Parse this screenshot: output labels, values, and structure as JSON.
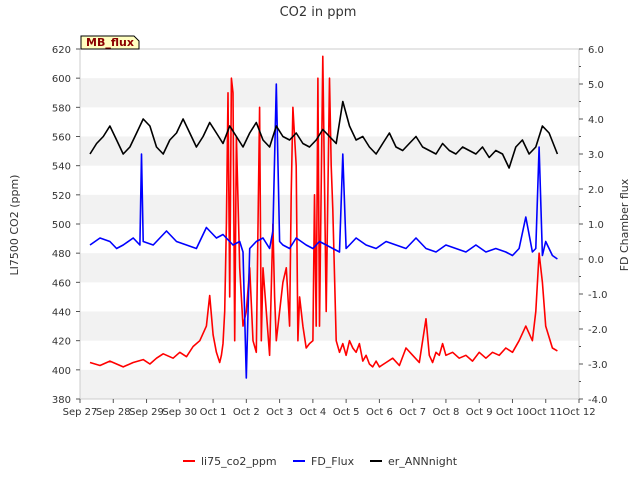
{
  "chart_data": {
    "type": "line",
    "title": "CO2 in ppm",
    "ylabel_left": "LI7500 CO2 (ppm)",
    "ylabel_right": "FD Chamber flux",
    "badge": "MB_flux",
    "ylim_left": [
      380,
      620
    ],
    "ylim_right": [
      -4.0,
      6.0
    ],
    "xlim": [
      0,
      15
    ],
    "left_ticks": [
      "380",
      "400",
      "420",
      "440",
      "460",
      "480",
      "500",
      "520",
      "540",
      "560",
      "580",
      "600",
      "620"
    ],
    "right_ticks": [
      "-4.0",
      "-3.0",
      "-2.0",
      "-1.0",
      "0.0",
      "1.0",
      "2.0",
      "3.0",
      "4.0",
      "5.0",
      "6.0"
    ],
    "x_ticks": [
      "Sep 27",
      "Sep 28",
      "Sep 29",
      "Sep 30",
      "Oct 1",
      "Oct 2",
      "Oct 3",
      "Oct 4",
      "Oct 5",
      "Oct 6",
      "Oct 7",
      "Oct 8",
      "Oct 9",
      "Oct 10",
      "Oct 11",
      "Oct 12"
    ],
    "colors": {
      "li75": "#ff0000",
      "fd": "#0000ff",
      "ann": "#000000",
      "band": "#f2f2f2",
      "badge_bg": "#ffffc0",
      "badge_text": "#8b0000"
    },
    "series": [
      {
        "name": "li75_co2_ppm",
        "axis": "left",
        "color": "#ff0000",
        "x": [
          0.3,
          0.6,
          0.9,
          1.1,
          1.3,
          1.6,
          1.9,
          2.1,
          2.3,
          2.5,
          2.8,
          3.0,
          3.2,
          3.4,
          3.6,
          3.8,
          3.9,
          4.0,
          4.1,
          4.2,
          4.25,
          4.3,
          4.35,
          4.4,
          4.45,
          4.5,
          4.55,
          4.6,
          4.65,
          4.7,
          4.8,
          4.9,
          5.0,
          5.1,
          5.2,
          5.3,
          5.4,
          5.45,
          5.5,
          5.6,
          5.7,
          5.8,
          5.85,
          5.9,
          6.0,
          6.1,
          6.2,
          6.3,
          6.35,
          6.4,
          6.5,
          6.55,
          6.6,
          6.7,
          6.8,
          6.9,
          7.0,
          7.05,
          7.1,
          7.15,
          7.2,
          7.3,
          7.4,
          7.5,
          7.55,
          7.6,
          7.7,
          7.8,
          7.9,
          8.0,
          8.1,
          8.2,
          8.3,
          8.4,
          8.5,
          8.6,
          8.7,
          8.8,
          8.9,
          9.0,
          9.2,
          9.4,
          9.6,
          9.8,
          10.0,
          10.2,
          10.4,
          10.5,
          10.6,
          10.7,
          10.8,
          10.9,
          11.0,
          11.2,
          11.4,
          11.6,
          11.8,
          12.0,
          12.2,
          12.4,
          12.6,
          12.8,
          13.0,
          13.2,
          13.4,
          13.6,
          13.7,
          13.8,
          13.9,
          14.0,
          14.2,
          14.35
        ],
        "y": [
          405,
          403,
          406,
          404,
          402,
          405,
          407,
          404,
          408,
          411,
          408,
          412,
          409,
          416,
          420,
          430,
          451,
          424,
          412,
          405,
          410,
          418,
          440,
          500,
          590,
          450,
          600,
          590,
          420,
          560,
          470,
          430,
          440,
          470,
          420,
          412,
          580,
          420,
          470,
          440,
          410,
          500,
          450,
          420,
          440,
          460,
          470,
          430,
          520,
          580,
          540,
          420,
          450,
          430,
          415,
          418,
          420,
          520,
          430,
          600,
          430,
          615,
          440,
          600,
          540,
          510,
          420,
          412,
          418,
          410,
          420,
          415,
          412,
          418,
          406,
          410,
          404,
          402,
          406,
          402,
          405,
          408,
          403,
          415,
          410,
          405,
          435,
          410,
          405,
          412,
          410,
          418,
          410,
          412,
          408,
          410,
          406,
          412,
          408,
          412,
          410,
          415,
          412,
          420,
          430,
          420,
          440,
          480,
          460,
          430,
          415,
          413
        ]
      },
      {
        "name": "FD_Flux",
        "axis": "right",
        "color": "#0000ff",
        "x": [
          0.3,
          0.6,
          0.9,
          1.1,
          1.3,
          1.6,
          1.8,
          1.85,
          1.9,
          2.2,
          2.6,
          2.9,
          3.2,
          3.5,
          3.8,
          4.1,
          4.3,
          4.6,
          4.8,
          4.9,
          5.0,
          5.1,
          5.3,
          5.5,
          5.7,
          5.8,
          5.9,
          6.0,
          6.1,
          6.3,
          6.5,
          6.8,
          7.0,
          7.2,
          7.4,
          7.6,
          7.8,
          7.9,
          8.0,
          8.1,
          8.3,
          8.6,
          8.9,
          9.2,
          9.5,
          9.8,
          10.1,
          10.4,
          10.7,
          11.0,
          11.3,
          11.6,
          11.9,
          12.2,
          12.5,
          12.8,
          13.0,
          13.2,
          13.4,
          13.6,
          13.7,
          13.8,
          13.9,
          14.0,
          14.2,
          14.35
        ],
        "y": [
          0.4,
          0.6,
          0.5,
          0.3,
          0.4,
          0.6,
          0.4,
          3.0,
          0.5,
          0.4,
          0.8,
          0.5,
          0.4,
          0.3,
          0.9,
          0.6,
          0.7,
          0.4,
          0.5,
          0.2,
          -3.4,
          0.3,
          0.5,
          0.6,
          0.3,
          0.8,
          5.0,
          0.5,
          0.4,
          0.3,
          0.6,
          0.4,
          0.3,
          0.5,
          0.4,
          0.3,
          0.2,
          3.0,
          0.3,
          0.4,
          0.6,
          0.4,
          0.3,
          0.5,
          0.4,
          0.3,
          0.6,
          0.3,
          0.2,
          0.4,
          0.3,
          0.2,
          0.4,
          0.2,
          0.3,
          0.2,
          0.1,
          0.3,
          1.2,
          0.2,
          0.3,
          3.2,
          0.1,
          0.5,
          0.1,
          0.0
        ]
      },
      {
        "name": "er_ANNnight",
        "axis": "right",
        "color": "#000000",
        "x": [
          0.3,
          0.5,
          0.7,
          0.9,
          1.1,
          1.3,
          1.5,
          1.7,
          1.9,
          2.1,
          2.3,
          2.5,
          2.7,
          2.9,
          3.1,
          3.3,
          3.5,
          3.7,
          3.9,
          4.1,
          4.3,
          4.5,
          4.7,
          4.9,
          5.1,
          5.3,
          5.5,
          5.7,
          5.9,
          6.1,
          6.3,
          6.5,
          6.7,
          6.9,
          7.1,
          7.3,
          7.5,
          7.7,
          7.9,
          8.1,
          8.3,
          8.5,
          8.7,
          8.9,
          9.1,
          9.3,
          9.5,
          9.7,
          9.9,
          10.1,
          10.3,
          10.5,
          10.7,
          10.9,
          11.1,
          11.3,
          11.5,
          11.7,
          11.9,
          12.1,
          12.3,
          12.5,
          12.7,
          12.9,
          13.1,
          13.3,
          13.5,
          13.7,
          13.9,
          14.1,
          14.35
        ],
        "y": [
          3.0,
          3.3,
          3.5,
          3.8,
          3.4,
          3.0,
          3.2,
          3.6,
          4.0,
          3.8,
          3.2,
          3.0,
          3.4,
          3.6,
          4.0,
          3.6,
          3.2,
          3.5,
          3.9,
          3.6,
          3.3,
          3.8,
          3.5,
          3.2,
          3.6,
          3.9,
          3.4,
          3.2,
          3.8,
          3.5,
          3.4,
          3.6,
          3.3,
          3.2,
          3.4,
          3.7,
          3.5,
          3.3,
          4.5,
          3.8,
          3.4,
          3.5,
          3.2,
          3.0,
          3.3,
          3.6,
          3.2,
          3.1,
          3.3,
          3.5,
          3.2,
          3.1,
          3.0,
          3.3,
          3.1,
          3.0,
          3.2,
          3.1,
          3.0,
          3.2,
          2.9,
          3.1,
          3.0,
          2.6,
          3.2,
          3.4,
          3.0,
          3.2,
          3.8,
          3.6,
          3.0
        ]
      }
    ]
  }
}
